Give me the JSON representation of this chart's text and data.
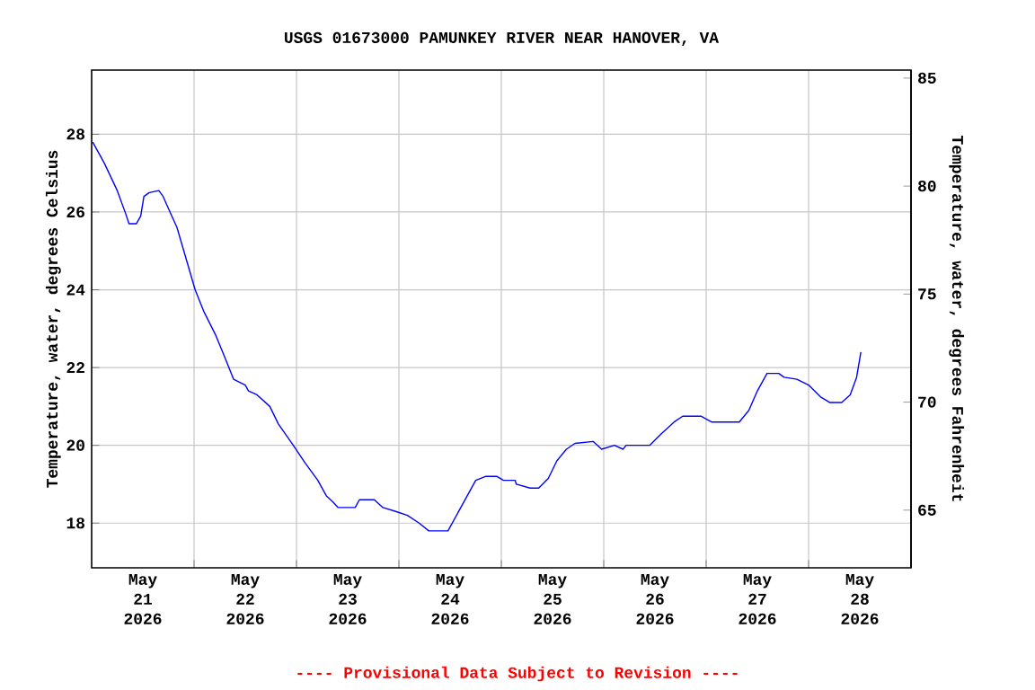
{
  "chart_data": {
    "type": "line",
    "title": "USGS 01673000 PAMUNKEY RIVER NEAR HANOVER, VA",
    "ylabel": "Temperature, water, degrees Celsius",
    "y2label": "Temperature, water, degrees Fahrenheit",
    "annotations": [
      "---- Provisional Data Subject to Revision ----"
    ],
    "x": [
      "2026-05-21T00:15",
      "2026-05-21T03:00",
      "2026-05-21T06:00",
      "2026-05-21T08:00",
      "2026-05-21T08:45",
      "2026-05-21T10:30",
      "2026-05-21T11:30",
      "2026-05-21T12:15",
      "2026-05-21T13:30",
      "2026-05-21T15:45",
      "2026-05-21T16:45",
      "2026-05-21T17:45",
      "2026-05-21T20:00",
      "2026-05-21T22:00",
      "2026-05-22T00:15",
      "2026-05-22T02:15",
      "2026-05-22T05:00",
      "2026-05-22T07:15",
      "2026-05-22T09:15",
      "2026-05-22T12:00",
      "2026-05-22T12:45",
      "2026-05-22T14:45",
      "2026-05-22T17:45",
      "2026-05-22T19:45",
      "2026-05-22T23:15",
      "2026-05-23T02:00",
      "2026-05-23T05:00",
      "2026-05-23T07:00",
      "2026-05-23T08:30",
      "2026-05-23T09:45",
      "2026-05-23T13:45",
      "2026-05-23T14:45",
      "2026-05-23T18:15",
      "2026-05-23T20:15",
      "2026-05-23T23:15",
      "2026-05-24T02:00",
      "2026-05-24T04:45",
      "2026-05-24T07:00",
      "2026-05-24T11:30",
      "2026-05-24T13:15",
      "2026-05-24T16:00",
      "2026-05-24T18:00",
      "2026-05-24T20:15",
      "2026-05-24T23:00",
      "2026-05-25T00:30",
      "2026-05-25T03:15",
      "2026-05-25T03:30",
      "2026-05-25T06:45",
      "2026-05-25T08:45",
      "2026-05-25T11:00",
      "2026-05-25T13:00",
      "2026-05-25T15:15",
      "2026-05-25T17:15",
      "2026-05-25T21:30",
      "2026-05-25T23:30",
      "2026-05-26T02:30",
      "2026-05-26T04:30",
      "2026-05-26T05:15",
      "2026-05-26T10:45",
      "2026-05-26T13:30",
      "2026-05-26T16:30",
      "2026-05-26T18:30",
      "2026-05-26T22:45",
      "2026-05-27T01:15",
      "2026-05-27T07:45",
      "2026-05-27T10:00",
      "2026-05-27T12:00",
      "2026-05-27T14:15",
      "2026-05-27T17:00",
      "2026-05-27T18:15",
      "2026-05-27T21:15",
      "2026-05-28T00:00",
      "2026-05-28T02:45",
      "2026-05-28T05:00",
      "2026-05-28T07:45",
      "2026-05-28T09:45",
      "2026-05-28T11:15",
      "2026-05-28T12:15"
    ],
    "values": [
      27.8,
      27.25,
      26.55,
      25.95,
      25.7,
      25.7,
      25.9,
      26.4,
      26.5,
      26.55,
      26.4,
      26.15,
      25.6,
      24.85,
      24.0,
      23.45,
      22.85,
      22.25,
      21.7,
      21.55,
      21.4,
      21.3,
      21.0,
      20.55,
      20.0,
      19.55,
      19.1,
      18.7,
      18.55,
      18.4,
      18.4,
      18.6,
      18.6,
      18.4,
      18.3,
      18.2,
      18.0,
      17.8,
      17.8,
      18.15,
      18.7,
      19.1,
      19.2,
      19.2,
      19.1,
      19.1,
      19.0,
      18.9,
      18.9,
      19.15,
      19.6,
      19.9,
      20.05,
      20.1,
      19.9,
      20.0,
      19.9,
      20.0,
      20.0,
      20.3,
      20.6,
      20.75,
      20.75,
      20.6,
      20.6,
      20.9,
      21.4,
      21.85,
      21.85,
      21.75,
      21.7,
      21.55,
      21.25,
      21.1,
      21.1,
      21.3,
      21.75,
      22.4
    ],
    "color": "#0000ff",
    "xlim": [
      "2026-05-21T00:00",
      "2026-05-29T00:00"
    ],
    "xticks": [
      {
        "value": "2026-05-21T12:00",
        "label": "May 21 2026"
      },
      {
        "value": "2026-05-22T12:00",
        "label": "May 22 2026"
      },
      {
        "value": "2026-05-23T12:00",
        "label": "May 23 2026"
      },
      {
        "value": "2026-05-24T12:00",
        "label": "May 24 2026"
      },
      {
        "value": "2026-05-25T12:00",
        "label": "May 25 2026"
      },
      {
        "value": "2026-05-26T12:00",
        "label": "May 26 2026"
      },
      {
        "value": "2026-05-27T12:00",
        "label": "May 27 2026"
      },
      {
        "value": "2026-05-28T12:00",
        "label": "May 28 2026"
      },
      {
        "value": "2026-05-22T00:00",
        "label": null
      },
      {
        "value": "2026-05-23T00:00",
        "label": null
      },
      {
        "value": "2026-05-24T00:00",
        "label": null
      },
      {
        "value": "2026-05-25T00:00",
        "label": null
      },
      {
        "value": "2026-05-26T00:00",
        "label": null
      },
      {
        "value": "2026-05-27T00:00",
        "label": null
      },
      {
        "value": "2026-05-28T00:00",
        "label": null
      }
    ],
    "ylim": [
      16.85,
      29.65
    ],
    "yticks": [
      18,
      20,
      22,
      24,
      26,
      28
    ],
    "y2lim": [
      62.33,
      85.37
    ],
    "y2ticks": [
      65,
      70,
      75,
      80,
      85
    ],
    "grid": true,
    "line_style": "solid",
    "marker": "none"
  }
}
